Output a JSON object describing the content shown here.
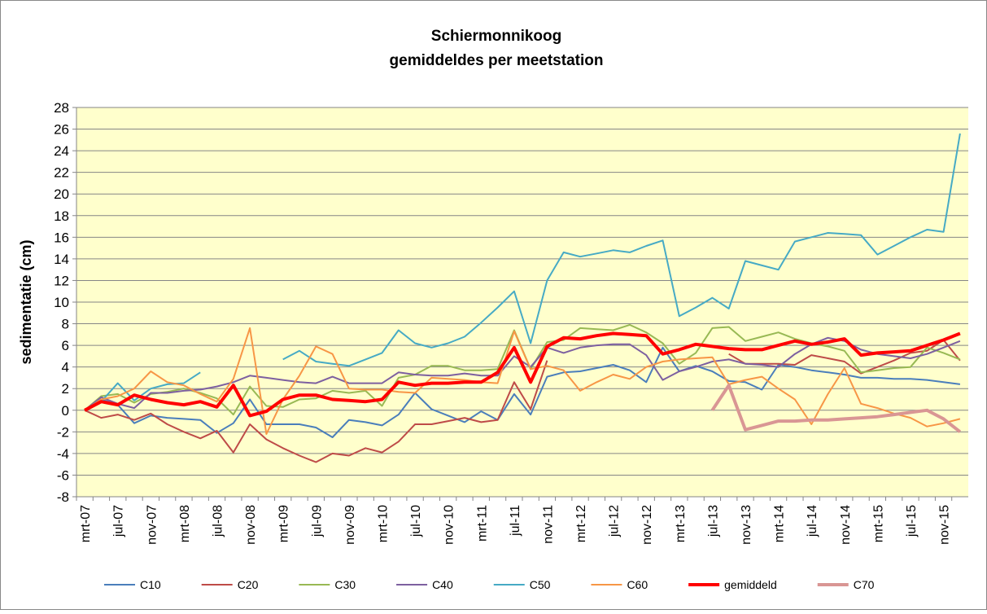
{
  "chart_data": {
    "type": "line",
    "title": "Schiermonnikoog",
    "subtitle": "gemiddeldes per meetstation",
    "y_label": "sedimentatie (cm)",
    "categories": [
      "mrt-07",
      null,
      "jul-07",
      null,
      "nov-07",
      null,
      "mrt-08",
      null,
      "jul-08",
      null,
      "nov-08",
      null,
      "mrt-09",
      null,
      "jul-09",
      null,
      "nov-09",
      null,
      "mrt-10",
      null,
      "jul-10",
      null,
      "nov-10",
      null,
      "mrt-11",
      null,
      "jul-11",
      null,
      "nov-11",
      null,
      "mrt-12",
      null,
      "jul-12",
      null,
      "nov-12",
      null,
      "mrt-13",
      null,
      "jul-13",
      null,
      "nov-13",
      null,
      "mrt-14",
      null,
      "jul-14",
      null,
      "nov-14",
      null,
      "mrt-15",
      null,
      "jul-15",
      null,
      "nov-15",
      null
    ],
    "ylim": [
      -8,
      28
    ],
    "yticks": [
      -8,
      -6,
      -4,
      -2,
      0,
      2,
      4,
      6,
      8,
      10,
      12,
      14,
      16,
      18,
      20,
      22,
      24,
      26,
      28
    ],
    "grid": true,
    "legend": "bottom",
    "series": [
      {
        "name": "C10",
        "color": "#4a7ebb",
        "line_width": 2,
        "values": [
          0,
          1.0,
          0.5,
          -1.2,
          -0.5,
          -0.7,
          -0.8,
          -0.9,
          -2.1,
          -1.2,
          1.0,
          -1.3,
          -1.3,
          -1.3,
          -1.6,
          -2.5,
          -0.9,
          -1.1,
          -1.4,
          -0.4,
          1.6,
          0.1,
          -0.5,
          -1.1,
          -0.1,
          -0.9,
          1.5,
          -0.4,
          3.1,
          3.5,
          3.6,
          3.9,
          4.2,
          3.7,
          2.6,
          5.8,
          3.6,
          4.1,
          3.6,
          2.7,
          2.6,
          1.9,
          4.2,
          4.0,
          3.7,
          3.5,
          3.3,
          3.0,
          3.0,
          2.9,
          2.9,
          2.8,
          2.6,
          2.4
        ]
      },
      {
        "name": "C20",
        "color": "#be4b48",
        "line_width": 2,
        "values": [
          0,
          -0.7,
          -0.4,
          -0.9,
          -0.3,
          -1.3,
          -2.0,
          -2.6,
          -1.9,
          -3.9,
          -1.3,
          -2.7,
          -3.5,
          -4.2,
          -4.8,
          -4.0,
          -4.2,
          -3.5,
          -3.9,
          -2.9,
          -1.3,
          -1.3,
          -1.0,
          -0.7,
          -1.1,
          -0.9,
          2.6,
          0.1,
          4.6,
          null,
          null,
          null,
          null,
          null,
          null,
          null,
          null,
          null,
          null,
          5.2,
          4.3,
          4.3,
          4.3,
          4.2,
          5.1,
          4.8,
          4.5,
          3.4,
          4.0,
          4.6,
          5.3,
          5.5,
          6.5,
          4.6
        ]
      },
      {
        "name": "C30",
        "color": "#98b954",
        "line_width": 2,
        "values": [
          0,
          1.3,
          1.5,
          0.7,
          1.5,
          1.7,
          2.0,
          1.6,
          1.1,
          -0.4,
          2.2,
          0.4,
          0.3,
          1.0,
          1.1,
          1.8,
          1.6,
          1.8,
          0.4,
          3.0,
          3.3,
          4.1,
          4.1,
          3.7,
          3.7,
          3.8,
          7.4,
          3.8,
          6.3,
          6.5,
          7.6,
          7.5,
          7.4,
          7.9,
          7.2,
          6.2,
          4.3,
          5.3,
          7.6,
          7.7,
          6.4,
          6.8,
          7.2,
          6.6,
          6.2,
          5.9,
          5.5,
          3.5,
          3.7,
          3.9,
          4.0,
          5.8,
          5.3,
          4.7
        ]
      },
      {
        "name": "C40",
        "color": "#7d60a0",
        "line_width": 2,
        "values": [
          0,
          1.2,
          0.6,
          0.2,
          1.6,
          1.6,
          1.8,
          1.9,
          2.2,
          2.6,
          3.2,
          3.0,
          2.8,
          2.6,
          2.5,
          3.1,
          2.5,
          2.5,
          2.5,
          3.5,
          3.3,
          3.2,
          3.2,
          3.4,
          3.2,
          3.2,
          5.0,
          4.0,
          5.8,
          5.3,
          5.8,
          6.0,
          6.1,
          6.1,
          5.1,
          2.8,
          3.6,
          4.0,
          4.5,
          4.7,
          4.3,
          4.2,
          4.0,
          5.2,
          6.1,
          6.7,
          6.4,
          5.6,
          5.2,
          5.0,
          4.8,
          5.2,
          5.8,
          6.4
        ]
      },
      {
        "name": "C50",
        "color": "#46aac5",
        "line_width": 2,
        "values": [
          0,
          0.8,
          2.5,
          0.9,
          2.0,
          2.4,
          2.5,
          3.5,
          null,
          null,
          null,
          null,
          4.7,
          5.5,
          4.5,
          4.3,
          4.1,
          4.7,
          5.3,
          7.4,
          6.2,
          5.8,
          6.2,
          6.8,
          8.1,
          9.5,
          11.0,
          6.2,
          12.0,
          14.6,
          14.2,
          14.5,
          14.8,
          14.6,
          15.2,
          15.7,
          8.7,
          9.5,
          10.4,
          9.4,
          13.8,
          13.4,
          13.0,
          15.6,
          16.0,
          16.4,
          16.3,
          16.2,
          14.4,
          15.2,
          16.0,
          16.7,
          16.5,
          25.6
        ]
      },
      {
        "name": "C60",
        "color": "#f79646",
        "line_width": 2,
        "values": [
          0,
          1.0,
          1.3,
          2.0,
          3.6,
          2.6,
          2.3,
          1.5,
          0.8,
          2.9,
          7.6,
          -2.2,
          1.0,
          3.2,
          5.9,
          5.2,
          2.0,
          1.9,
          1.9,
          1.7,
          1.6,
          3.0,
          2.9,
          2.8,
          2.6,
          2.5,
          7.3,
          3.8,
          4.1,
          3.7,
          1.8,
          2.6,
          3.3,
          2.9,
          4.0,
          4.5,
          4.7,
          4.8,
          4.9,
          2.4,
          2.8,
          3.1,
          2.0,
          1.0,
          -1.3,
          1.5,
          3.9,
          0.6,
          0.2,
          -0.3,
          -0.7,
          -1.5,
          -1.2,
          -0.8
        ]
      },
      {
        "name": "gemiddeld",
        "color": "#ff0000",
        "line_width": 4,
        "values": [
          0,
          0.8,
          0.5,
          1.4,
          1.0,
          0.7,
          0.5,
          0.8,
          0.3,
          2.3,
          -0.5,
          -0.1,
          1.0,
          1.4,
          1.4,
          1.0,
          0.9,
          0.8,
          1.0,
          2.6,
          2.3,
          2.5,
          2.5,
          2.6,
          2.6,
          3.5,
          5.8,
          2.6,
          5.9,
          6.7,
          6.6,
          6.9,
          7.1,
          7.0,
          6.9,
          5.2,
          5.6,
          6.1,
          5.9,
          5.7,
          5.6,
          5.6,
          6.0,
          6.4,
          6.1,
          6.3,
          6.6,
          5.1,
          5.3,
          5.4,
          5.5,
          6.0,
          6.5,
          7.1
        ]
      },
      {
        "name": "C70",
        "color": "#d99694",
        "line_width": 4,
        "values": [
          null,
          null,
          null,
          null,
          null,
          null,
          null,
          null,
          null,
          null,
          null,
          null,
          null,
          null,
          null,
          null,
          null,
          null,
          null,
          null,
          null,
          null,
          null,
          null,
          null,
          null,
          null,
          null,
          null,
          null,
          null,
          null,
          null,
          null,
          null,
          null,
          null,
          null,
          0,
          2.3,
          -1.8,
          -1.4,
          -1.0,
          -1.0,
          -0.9,
          -0.9,
          -0.8,
          -0.7,
          -0.6,
          -0.4,
          -0.2,
          0.0,
          -0.8,
          -2.0
        ]
      }
    ]
  }
}
